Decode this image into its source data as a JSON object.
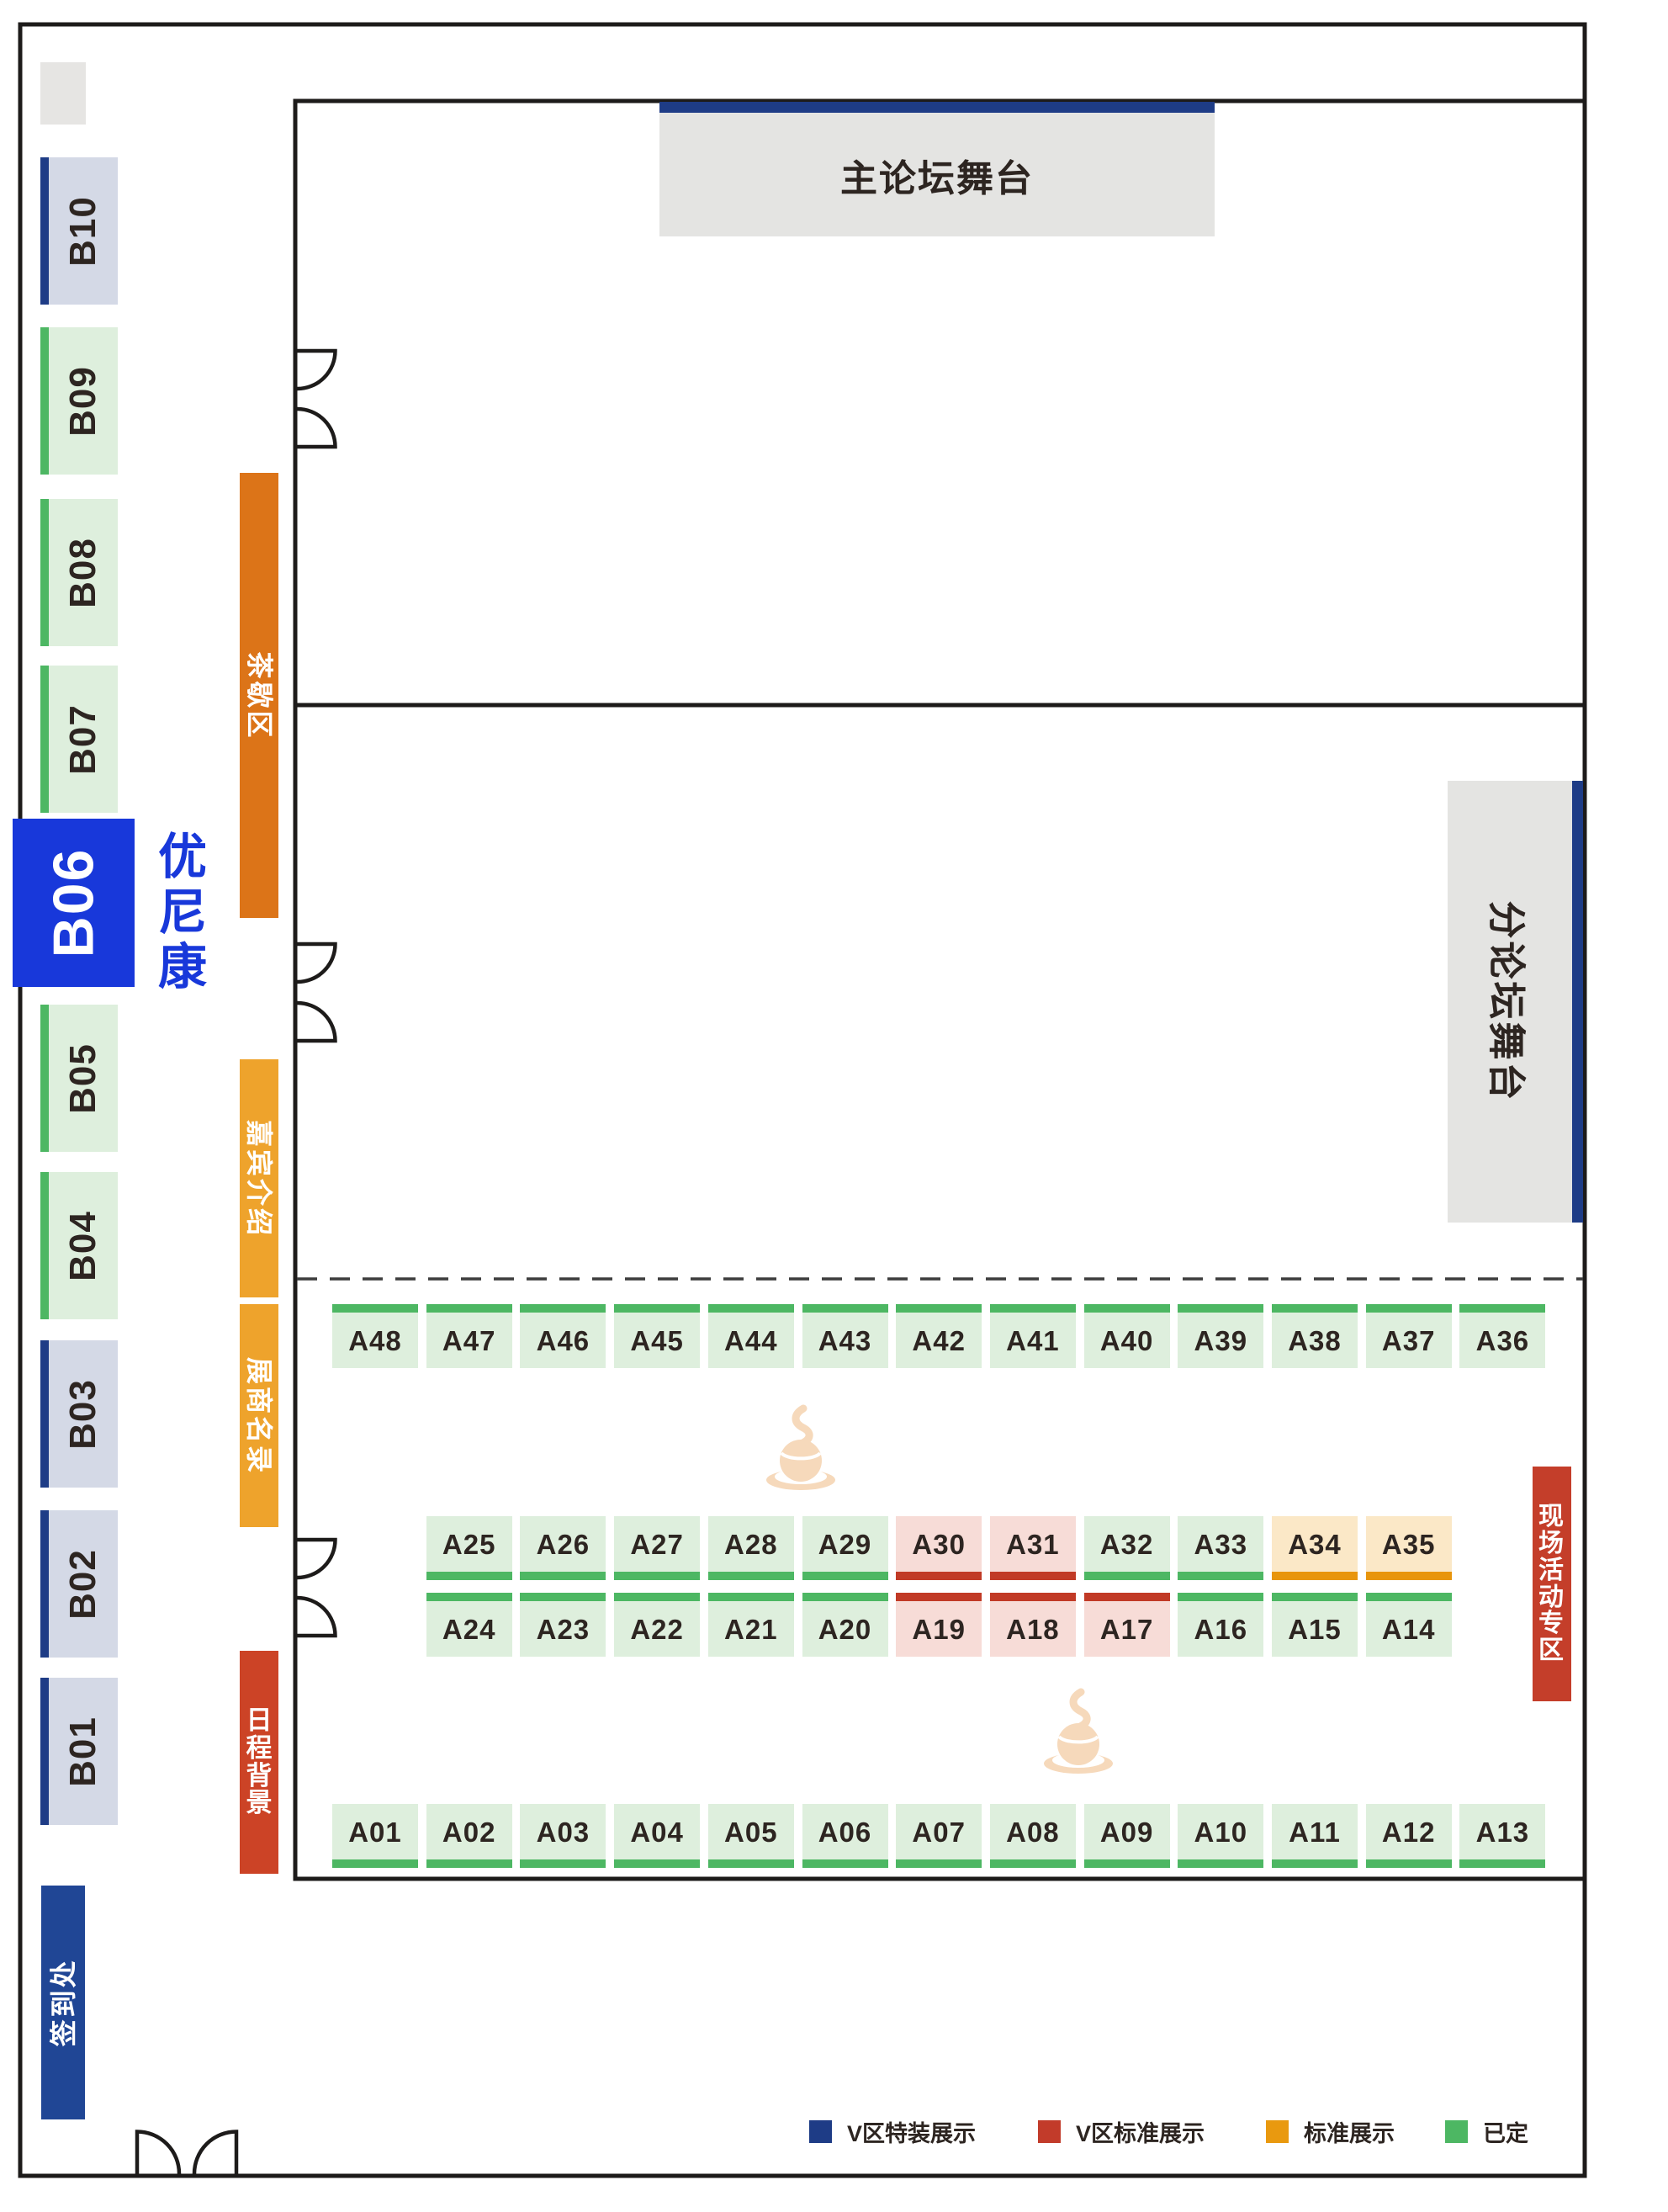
{
  "stages": {
    "main_stage_label": "主论坛舞台",
    "sub_stage_label": "分论坛舞台"
  },
  "featured_booth": {
    "id": "B06",
    "company": "优尼康"
  },
  "zones": {
    "tea_break": "茶歇区",
    "guest_intro": "嘉宾介绍",
    "exhibitor_directory": "展商名录",
    "schedule_backdrop": "日程背景",
    "sign_in": "签到处",
    "live_activity": "现场活动专区"
  },
  "legend": [
    {
      "key": "vip_special",
      "label": "V区特装展示",
      "color": "#1e3c86"
    },
    {
      "key": "vip_standard",
      "label": "V区标准展示",
      "color": "#c23b2a"
    },
    {
      "key": "standard",
      "label": "标准展示",
      "color": "#e9990f"
    },
    {
      "key": "reserved",
      "label": "已定",
      "color": "#4db763"
    }
  ],
  "status_colors": {
    "vip_special": {
      "bar": "#1e3c86",
      "fill": "#d4d9e6"
    },
    "vip_standard": {
      "bar": "#c13a26",
      "fill": "#f7dcd7"
    },
    "standard": {
      "bar": "#e8950c",
      "fill": "#fbe8c7"
    },
    "reserved": {
      "bar": "#4db763",
      "fill": "#deefdd"
    }
  },
  "accent_colors": {
    "featured_blue": "#1838da",
    "tea_break_orange": "#dc7418",
    "amber": "#eea32c",
    "schedule_red": "#cc4326",
    "live_activity_red": "#c43e2a",
    "sign_in_navy": "#204695",
    "stage_gray": "#e4e4e2",
    "wall_black": "#1d1b1a",
    "coffee_peach": "#f6d9bb"
  },
  "b_booths": [
    {
      "label": "B10",
      "status": "vip_special"
    },
    {
      "label": "B09",
      "status": "reserved"
    },
    {
      "label": "B08",
      "status": "reserved"
    },
    {
      "label": "B07",
      "status": "reserved"
    },
    {
      "label": "B05",
      "status": "reserved"
    },
    {
      "label": "B04",
      "status": "reserved"
    },
    {
      "label": "B03",
      "status": "vip_special"
    },
    {
      "label": "B02",
      "status": "vip_special"
    },
    {
      "label": "B01",
      "status": "vip_special"
    }
  ],
  "a_rows": {
    "row_top": [
      {
        "label": "A48",
        "status": "reserved"
      },
      {
        "label": "A47",
        "status": "reserved"
      },
      {
        "label": "A46",
        "status": "reserved"
      },
      {
        "label": "A45",
        "status": "reserved"
      },
      {
        "label": "A44",
        "status": "reserved"
      },
      {
        "label": "A43",
        "status": "reserved"
      },
      {
        "label": "A42",
        "status": "reserved"
      },
      {
        "label": "A41",
        "status": "reserved"
      },
      {
        "label": "A40",
        "status": "reserved"
      },
      {
        "label": "A39",
        "status": "reserved"
      },
      {
        "label": "A38",
        "status": "reserved"
      },
      {
        "label": "A37",
        "status": "reserved"
      },
      {
        "label": "A36",
        "status": "reserved"
      }
    ],
    "row_mid_upper": [
      {
        "label": "A25",
        "status": "reserved"
      },
      {
        "label": "A26",
        "status": "reserved"
      },
      {
        "label": "A27",
        "status": "reserved"
      },
      {
        "label": "A28",
        "status": "reserved"
      },
      {
        "label": "A29",
        "status": "reserved"
      },
      {
        "label": "A30",
        "status": "vip_standard"
      },
      {
        "label": "A31",
        "status": "vip_standard"
      },
      {
        "label": "A32",
        "status": "reserved"
      },
      {
        "label": "A33",
        "status": "reserved"
      },
      {
        "label": "A34",
        "status": "standard"
      },
      {
        "label": "A35",
        "status": "standard"
      }
    ],
    "row_mid_lower": [
      {
        "label": "A24",
        "status": "reserved"
      },
      {
        "label": "A23",
        "status": "reserved"
      },
      {
        "label": "A22",
        "status": "reserved"
      },
      {
        "label": "A21",
        "status": "reserved"
      },
      {
        "label": "A20",
        "status": "reserved"
      },
      {
        "label": "A19",
        "status": "vip_standard"
      },
      {
        "label": "A18",
        "status": "vip_standard"
      },
      {
        "label": "A17",
        "status": "vip_standard"
      },
      {
        "label": "A16",
        "status": "reserved"
      },
      {
        "label": "A15",
        "status": "reserved"
      },
      {
        "label": "A14",
        "status": "reserved"
      }
    ],
    "row_bottom": [
      {
        "label": "A01",
        "status": "reserved"
      },
      {
        "label": "A02",
        "status": "reserved"
      },
      {
        "label": "A03",
        "status": "reserved"
      },
      {
        "label": "A04",
        "status": "reserved"
      },
      {
        "label": "A05",
        "status": "reserved"
      },
      {
        "label": "A06",
        "status": "reserved"
      },
      {
        "label": "A07",
        "status": "reserved"
      },
      {
        "label": "A08",
        "status": "reserved"
      },
      {
        "label": "A09",
        "status": "reserved"
      },
      {
        "label": "A10",
        "status": "reserved"
      },
      {
        "label": "A11",
        "status": "reserved"
      },
      {
        "label": "A12",
        "status": "reserved"
      },
      {
        "label": "A13",
        "status": "reserved"
      }
    ]
  }
}
